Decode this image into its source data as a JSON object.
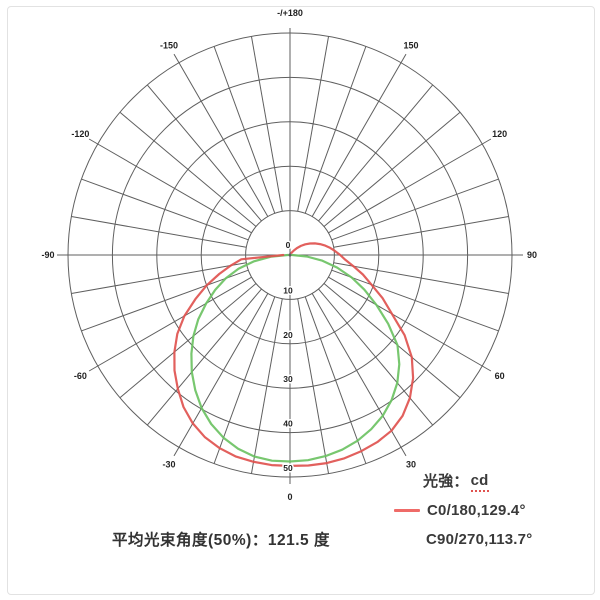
{
  "chart_data": {
    "type": "polar-line",
    "title": "",
    "caption": "平均光束角度(50%)：121.5 度",
    "units": "cd",
    "radial_max": 50,
    "radial_ticks": [
      0,
      10,
      20,
      30,
      40,
      50
    ],
    "ring_step": 10,
    "spoke_step_deg": 10,
    "grid_color": "#5f5f5f",
    "label_color": "#222222",
    "angle_labels": [
      {
        "deg": 180,
        "text": "-/+180"
      },
      {
        "deg": -150,
        "text": "-150"
      },
      {
        "deg": 150,
        "text": "150"
      },
      {
        "deg": -120,
        "text": "-120"
      },
      {
        "deg": 120,
        "text": "120"
      },
      {
        "deg": -90,
        "text": "-90"
      },
      {
        "deg": 90,
        "text": "90"
      },
      {
        "deg": -60,
        "text": "-60"
      },
      {
        "deg": 60,
        "text": "60"
      },
      {
        "deg": -30,
        "text": "-30"
      },
      {
        "deg": 30,
        "text": "30"
      },
      {
        "deg": 0,
        "text": "0"
      }
    ],
    "series": [
      {
        "name": "C90/270",
        "beam_angle_deg": 113.7,
        "color": "#6cc263",
        "points": [
          [
            -90,
            0.5
          ],
          [
            -85,
            4.2
          ],
          [
            -80,
            8.2
          ],
          [
            -75,
            12
          ],
          [
            -70,
            15.4
          ],
          [
            -65,
            18.6
          ],
          [
            -60,
            21.8
          ],
          [
            -55,
            25.2
          ],
          [
            -50,
            28.4
          ],
          [
            -45,
            31.4
          ],
          [
            -40,
            34.4
          ],
          [
            -35,
            37.2
          ],
          [
            -30,
            39.8
          ],
          [
            -25,
            42
          ],
          [
            -20,
            43.8
          ],
          [
            -15,
            45.2
          ],
          [
            -10,
            46.1
          ],
          [
            -5,
            46.5
          ],
          [
            0,
            46.5
          ],
          [
            5,
            46.4
          ],
          [
            10,
            46
          ],
          [
            15,
            45.4
          ],
          [
            20,
            44.5
          ],
          [
            25,
            43.3
          ],
          [
            30,
            41.8
          ],
          [
            35,
            39.9
          ],
          [
            40,
            37.6
          ],
          [
            45,
            34.8
          ],
          [
            50,
            31.6
          ],
          [
            55,
            27
          ],
          [
            60,
            22.5
          ],
          [
            65,
            18.5
          ],
          [
            70,
            14.8
          ],
          [
            75,
            11
          ],
          [
            80,
            7.4
          ],
          [
            85,
            3.8
          ],
          [
            90,
            0.5
          ]
        ]
      },
      {
        "name": "C0/180",
        "beam_angle_deg": 129.4,
        "color": "#e0524f",
        "points": [
          [
            -90,
            1.5
          ],
          [
            -85,
            11
          ],
          [
            -80,
            13.5
          ],
          [
            -75,
            16.5
          ],
          [
            -70,
            20
          ],
          [
            -65,
            23.5
          ],
          [
            -60,
            27.5
          ],
          [
            -55,
            31
          ],
          [
            -50,
            34
          ],
          [
            -45,
            36.8
          ],
          [
            -40,
            39.3
          ],
          [
            -35,
            41.8
          ],
          [
            -30,
            43.8
          ],
          [
            -25,
            45.3
          ],
          [
            -20,
            46.3
          ],
          [
            -15,
            47
          ],
          [
            -10,
            47.3
          ],
          [
            -5,
            47.5
          ],
          [
            0,
            47.5
          ],
          [
            5,
            47.6
          ],
          [
            10,
            47.6
          ],
          [
            15,
            47.4
          ],
          [
            20,
            47
          ],
          [
            25,
            46.5
          ],
          [
            30,
            45.7
          ],
          [
            35,
            44.2
          ],
          [
            40,
            42
          ],
          [
            45,
            39.2
          ],
          [
            50,
            35.8
          ],
          [
            55,
            31.5
          ],
          [
            60,
            26.5
          ],
          [
            65,
            23
          ],
          [
            70,
            19.5
          ],
          [
            75,
            17
          ],
          [
            80,
            14.5
          ],
          [
            85,
            12.5
          ],
          [
            90,
            11.3
          ],
          [
            95,
            10.2
          ],
          [
            100,
            9.2
          ],
          [
            105,
            8.2
          ],
          [
            110,
            7.2
          ],
          [
            115,
            6.2
          ],
          [
            120,
            5.2
          ],
          [
            125,
            4.2
          ],
          [
            130,
            3.2
          ],
          [
            135,
            2.2
          ],
          [
            140,
            1.3
          ],
          [
            145,
            0.6
          ]
        ]
      }
    ]
  },
  "legend": {
    "intensity_label": "光強：",
    "intensity_unit": "cd",
    "entries": [
      {
        "label": "C0/180,129.4°",
        "color": "#ef6b68",
        "show_line": true
      },
      {
        "label": "C90/270,113.7°",
        "color": "#6cc263",
        "show_line": false
      }
    ]
  }
}
